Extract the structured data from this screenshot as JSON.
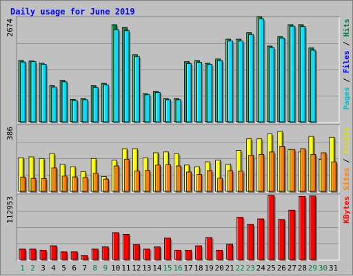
{
  "chart_data": {
    "type": "bar",
    "title": "Daily usage for June 2019",
    "categories": [
      "1",
      "2",
      "3",
      "4",
      "5",
      "6",
      "7",
      "8",
      "9",
      "10",
      "11",
      "12",
      "13",
      "14",
      "15",
      "16",
      "17",
      "18",
      "19",
      "20",
      "21",
      "22",
      "23",
      "24",
      "25",
      "26",
      "27",
      "28",
      "29",
      "30",
      "31"
    ],
    "weekend_days": [
      "1",
      "2",
      "8",
      "9",
      "15",
      "16",
      "22",
      "23",
      "29",
      "30"
    ],
    "panels": [
      {
        "id": "top",
        "max_label": "2674",
        "ymax": 2674,
        "series": [
          {
            "name": "Hits",
            "color": "#008040",
            "values": [
              1610,
              1600,
              1540,
              950,
              1090,
              590,
              610,
              950,
              1010,
              2550,
              2480,
              1760,
              740,
              800,
              610,
              610,
              1580,
              1610,
              1540,
              1650,
              2170,
              2170,
              2340,
              2760,
              1990,
              2240,
              2550,
              2550,
              1940,
              0,
              0
            ]
          },
          {
            "name": "Files",
            "color": "#0000ff",
            "values": [
              0,
              0,
              0,
              0,
              0,
              0,
              0,
              0,
              0,
              0,
              0,
              0,
              0,
              0,
              0,
              0,
              0,
              0,
              0,
              0,
              0,
              0,
              0,
              0,
              0,
              0,
              0,
              0,
              0,
              0,
              0
            ]
          },
          {
            "name": "Pages",
            "color": "#00e0ff",
            "values": [
              1570,
              1580,
              1510,
              910,
              1050,
              560,
              580,
              900,
              970,
              2420,
              2390,
              1710,
              710,
              770,
              580,
              580,
              1530,
              1560,
              1510,
              1610,
              2120,
              2120,
              2290,
              2700,
              1950,
              2200,
              2510,
              2500,
              1880,
              0,
              0
            ]
          }
        ],
        "axis_label_parts": [
          {
            "text": "Pages",
            "color": "#00c0d0"
          },
          {
            "text": " / ",
            "color": "#000000"
          },
          {
            "text": "Files",
            "color": "#0000ff"
          },
          {
            "text": " / ",
            "color": "#000000"
          },
          {
            "text": "Hits",
            "color": "#008040"
          }
        ]
      },
      {
        "id": "mid",
        "max_label": "386",
        "ymax": 386,
        "series": [
          {
            "name": "Visits",
            "color": "#ffff00",
            "values": [
              205,
              210,
              200,
              230,
              165,
              150,
              120,
              200,
              90,
              190,
              260,
              260,
              205,
              235,
              240,
              230,
              160,
              150,
              180,
              190,
              165,
              250,
              320,
              320,
              350,
              365,
              255,
              240,
              335,
              195,
              330
            ]
          },
          {
            "name": "Sites",
            "color": "#ff8000",
            "values": [
              87,
              79,
              78,
              143,
              93,
              88,
              84,
              110,
              75,
              155,
              196,
              125,
              127,
              160,
              163,
              155,
              118,
              103,
              126,
              80,
              126,
              124,
              220,
              225,
              240,
              275,
              255,
              260,
              225,
              235,
              180
            ]
          }
        ],
        "axis_label_parts": [
          {
            "text": "Sites",
            "color": "#ff8000"
          },
          {
            "text": " / ",
            "color": "#000000"
          },
          {
            "text": "Visits",
            "color": "#e0e000"
          }
        ]
      },
      {
        "id": "bot",
        "max_label": "112953",
        "ymax": 112953,
        "series": [
          {
            "name": "KBytes",
            "color": "#ff0000",
            "values": [
              19000,
              19000,
              17000,
              25000,
              14000,
              14000,
              7000,
              19000,
              23000,
              49000,
              46000,
              27000,
              19000,
              23000,
              39000,
              17000,
              17000,
              25000,
              40000,
              17000,
              28000,
              77000,
              64000,
              74000,
              117000,
              73000,
              90000,
              115000,
              116000,
              0,
              0
            ]
          }
        ],
        "axis_label_parts": [
          {
            "text": "KBytes",
            "color": "#ff0000"
          }
        ]
      }
    ]
  }
}
